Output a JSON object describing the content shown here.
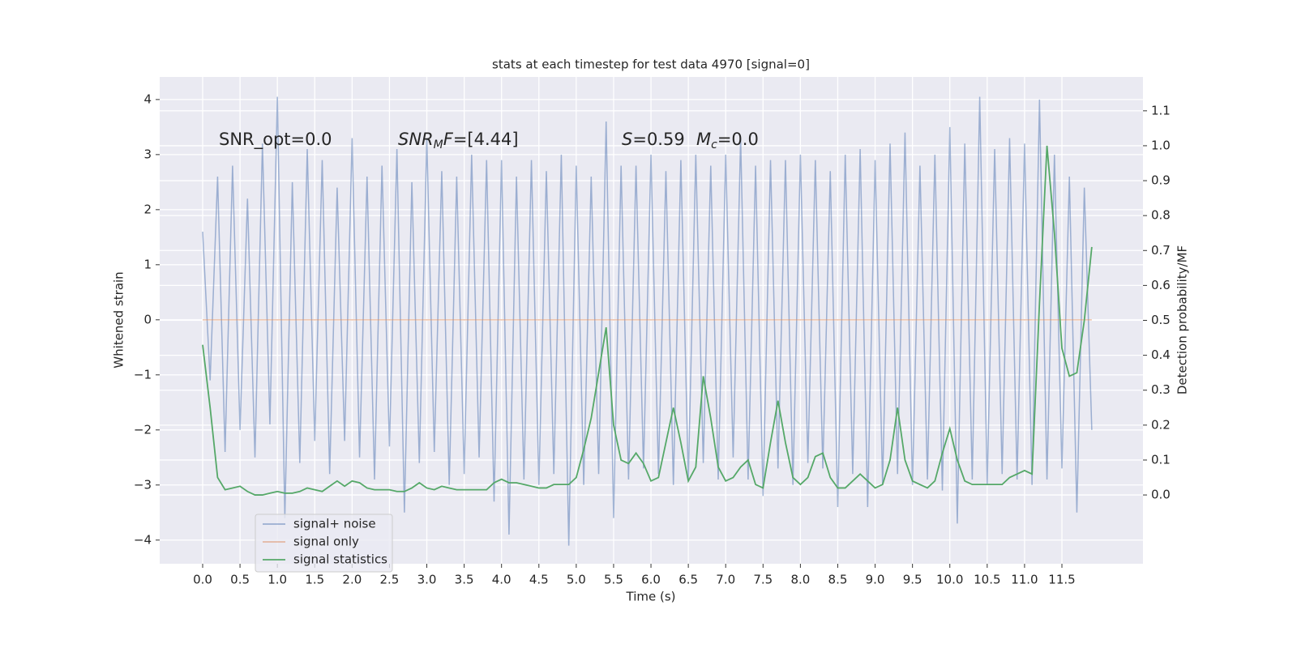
{
  "chart_data": {
    "type": "line",
    "title": "stats at each timestep for test data 4970 [signal=0]",
    "x_label": "Time (s)",
    "y_label": "Whitened strain",
    "y2_label": "Detection probability/MF",
    "annotations": [
      [
        {
          "text": "SNR_opt=0.0"
        }
      ],
      [
        {
          "text": "SNR",
          "italic": true
        },
        {
          "text": "M",
          "italic": true,
          "sub": true
        },
        {
          "text": "F",
          "italic": true
        },
        {
          "text": "=[4.44]"
        }
      ],
      [
        {
          "text": "S",
          "italic": true
        },
        {
          "text": "=0.59"
        }
      ],
      [
        {
          "text": "M",
          "italic": true
        },
        {
          "text": "c",
          "italic": true,
          "sub": true
        },
        {
          "text": "=0.0"
        }
      ]
    ],
    "x": [
      0.0,
      0.1,
      0.2,
      0.3,
      0.4,
      0.5,
      0.6,
      0.7,
      0.8,
      0.9,
      1.0,
      1.1,
      1.2,
      1.3,
      1.4,
      1.5,
      1.6,
      1.7,
      1.8,
      1.9,
      2.0,
      2.1,
      2.2,
      2.3,
      2.4,
      2.5,
      2.6,
      2.7,
      2.8,
      2.9,
      3.0,
      3.1,
      3.2,
      3.3,
      3.4,
      3.5,
      3.6,
      3.7,
      3.8,
      3.9,
      4.0,
      4.1,
      4.2,
      4.3,
      4.4,
      4.5,
      4.6,
      4.7,
      4.8,
      4.9,
      5.0,
      5.1,
      5.2,
      5.3,
      5.4,
      5.5,
      5.6,
      5.7,
      5.8,
      5.9,
      6.0,
      6.1,
      6.2,
      6.3,
      6.4,
      6.5,
      6.6,
      6.7,
      6.8,
      6.9,
      7.0,
      7.1,
      7.2,
      7.3,
      7.4,
      7.5,
      7.6,
      7.7,
      7.8,
      7.9,
      8.0,
      8.1,
      8.2,
      8.3,
      8.4,
      8.5,
      8.6,
      8.7,
      8.8,
      8.9,
      9.0,
      9.1,
      9.2,
      9.3,
      9.4,
      9.5,
      9.6,
      9.7,
      9.8,
      9.9,
      10.0,
      10.1,
      10.2,
      10.3,
      10.4,
      10.5,
      10.6,
      10.7,
      10.8,
      10.9,
      11.0,
      11.1,
      11.2,
      11.3,
      11.4,
      11.5,
      11.6,
      11.7,
      11.8,
      11.9
    ],
    "series": [
      {
        "name": "signal+ noise",
        "color": "#4c72b0",
        "alpha": 0.5,
        "values": [
          1.6,
          -1.1,
          2.6,
          -2.4,
          2.8,
          -2.0,
          2.2,
          -2.5,
          3.2,
          -1.9,
          4.05,
          -3.6,
          2.5,
          -2.6,
          3.1,
          -2.2,
          2.9,
          -2.8,
          2.4,
          -2.2,
          3.3,
          -2.5,
          2.6,
          -2.9,
          2.8,
          -2.3,
          3.1,
          -3.5,
          2.5,
          -2.6,
          3.3,
          -2.4,
          2.7,
          -3.0,
          2.6,
          -2.8,
          3.0,
          -2.5,
          2.9,
          -3.3,
          2.9,
          -3.9,
          2.6,
          -2.9,
          2.9,
          -3.0,
          2.7,
          -2.8,
          3.0,
          -4.1,
          2.8,
          -3.0,
          2.6,
          -2.8,
          3.6,
          -3.6,
          2.8,
          -2.9,
          2.8,
          -2.7,
          3.0,
          -2.8,
          2.7,
          -3.0,
          2.9,
          -2.9,
          3.0,
          -2.6,
          2.8,
          -2.9,
          3.0,
          -2.5,
          3.3,
          -2.9,
          2.8,
          -3.2,
          2.9,
          -2.7,
          2.9,
          -3.0,
          3.0,
          -2.6,
          2.9,
          -2.7,
          2.7,
          -3.4,
          3.0,
          -2.8,
          3.1,
          -3.4,
          2.9,
          -3.0,
          3.2,
          -2.8,
          3.4,
          -3.0,
          2.8,
          -2.9,
          3.0,
          -3.1,
          3.5,
          -3.7,
          3.2,
          -2.9,
          4.05,
          -3.0,
          3.1,
          -2.8,
          3.3,
          -2.9,
          3.2,
          -3.0,
          4.0,
          -2.9,
          3.0,
          -2.7,
          2.6,
          -3.5,
          2.4,
          -2.0
        ]
      },
      {
        "name": "signal only",
        "color": "#dd8452",
        "alpha": 0.5,
        "values": [
          0,
          0,
          0,
          0,
          0,
          0,
          0,
          0,
          0,
          0,
          0,
          0,
          0,
          0,
          0,
          0,
          0,
          0,
          0,
          0,
          0,
          0,
          0,
          0,
          0,
          0,
          0,
          0,
          0,
          0,
          0,
          0,
          0,
          0,
          0,
          0,
          0,
          0,
          0,
          0,
          0,
          0,
          0,
          0,
          0,
          0,
          0,
          0,
          0,
          0,
          0,
          0,
          0,
          0,
          0,
          0,
          0,
          0,
          0,
          0,
          0,
          0,
          0,
          0,
          0,
          0,
          0,
          0,
          0,
          0,
          0,
          0,
          0,
          0,
          0,
          0,
          0,
          0,
          0,
          0,
          0,
          0,
          0,
          0,
          0,
          0,
          0,
          0,
          0,
          0,
          0,
          0,
          0,
          0,
          0,
          0,
          0,
          0,
          0,
          0,
          0,
          0,
          0,
          0,
          0,
          0,
          0,
          0,
          0,
          0,
          0,
          0,
          0,
          0,
          0,
          0,
          0,
          0,
          0,
          0
        ]
      },
      {
        "name": "signal statistics",
        "color": "#55a868",
        "alpha": 1,
        "axis": "y2",
        "values": [
          0.43,
          0.25,
          0.05,
          0.015,
          0.02,
          0.025,
          0.01,
          0.0,
          0.0,
          0.005,
          0.01,
          0.005,
          0.005,
          0.01,
          0.02,
          0.015,
          0.01,
          0.025,
          0.04,
          0.025,
          0.04,
          0.035,
          0.02,
          0.015,
          0.015,
          0.015,
          0.01,
          0.01,
          0.02,
          0.035,
          0.02,
          0.015,
          0.025,
          0.02,
          0.015,
          0.015,
          0.015,
          0.015,
          0.015,
          0.035,
          0.045,
          0.035,
          0.035,
          0.03,
          0.025,
          0.02,
          0.02,
          0.03,
          0.03,
          0.03,
          0.05,
          0.13,
          0.22,
          0.35,
          0.48,
          0.2,
          0.1,
          0.09,
          0.12,
          0.09,
          0.04,
          0.05,
          0.15,
          0.25,
          0.15,
          0.04,
          0.08,
          0.34,
          0.22,
          0.08,
          0.04,
          0.05,
          0.08,
          0.1,
          0.03,
          0.02,
          0.15,
          0.27,
          0.15,
          0.05,
          0.03,
          0.05,
          0.11,
          0.12,
          0.05,
          0.02,
          0.02,
          0.04,
          0.06,
          0.04,
          0.02,
          0.03,
          0.1,
          0.25,
          0.1,
          0.04,
          0.03,
          0.02,
          0.04,
          0.12,
          0.19,
          0.1,
          0.04,
          0.03,
          0.03,
          0.03,
          0.03,
          0.03,
          0.05,
          0.06,
          0.07,
          0.06,
          0.55,
          1.0,
          0.75,
          0.42,
          0.34,
          0.35,
          0.5,
          0.71
        ]
      }
    ],
    "xlim": [
      -0.575,
      12.585
    ],
    "xticks": [
      {
        "value": 0,
        "label": "0.0"
      },
      {
        "value": 0.5,
        "label": "0.5"
      },
      {
        "value": 1,
        "label": "1.0"
      },
      {
        "value": 1.5,
        "label": "1.5"
      },
      {
        "value": 2,
        "label": "2.0"
      },
      {
        "value": 2.5,
        "label": "2.5"
      },
      {
        "value": 3,
        "label": "3.0"
      },
      {
        "value": 3.5,
        "label": "3.5"
      },
      {
        "value": 4,
        "label": "4.0"
      },
      {
        "value": 4.5,
        "label": "4.5"
      },
      {
        "value": 5,
        "label": "5.0"
      },
      {
        "value": 5.5,
        "label": "5.5"
      },
      {
        "value": 6,
        "label": "6.0"
      },
      {
        "value": 6.5,
        "label": "6.5"
      },
      {
        "value": 7,
        "label": "7.0"
      },
      {
        "value": 7.5,
        "label": "7.5"
      },
      {
        "value": 8,
        "label": "8.0"
      },
      {
        "value": 8.5,
        "label": "8.5"
      },
      {
        "value": 9,
        "label": "9.0"
      },
      {
        "value": 9.5,
        "label": "9.5"
      },
      {
        "value": 10,
        "label": "10.0"
      },
      {
        "value": 10.5,
        "label": "10.5"
      },
      {
        "value": 11,
        "label": "11.0"
      },
      {
        "value": 11.5,
        "label": "11.5"
      }
    ],
    "ylim": [
      -4.43,
      4.41
    ],
    "yticks": [
      {
        "value": -4,
        "label": "−4"
      },
      {
        "value": -3,
        "label": "−3"
      },
      {
        "value": -2,
        "label": "−2"
      },
      {
        "value": -1,
        "label": "−1"
      },
      0,
      1,
      2,
      3,
      4
    ],
    "y2lim": [
      -0.197,
      1.197
    ],
    "y2ticks": [
      {
        "value": 0,
        "label": "0.0"
      },
      {
        "value": 0.1,
        "label": "0.1"
      },
      {
        "value": 0.2,
        "label": "0.2"
      },
      {
        "value": 0.3,
        "label": "0.3"
      },
      {
        "value": 0.4,
        "label": "0.4"
      },
      {
        "value": 0.5,
        "label": "0.5"
      },
      {
        "value": 0.6,
        "label": "0.6"
      },
      {
        "value": 0.7,
        "label": "0.7"
      },
      {
        "value": 0.8,
        "label": "0.8"
      },
      {
        "value": 0.9,
        "label": "0.9"
      },
      {
        "value": 1,
        "label": "1.0"
      },
      {
        "value": 1.1,
        "label": "1.1"
      }
    ],
    "grid": true,
    "legend": "lower left"
  }
}
